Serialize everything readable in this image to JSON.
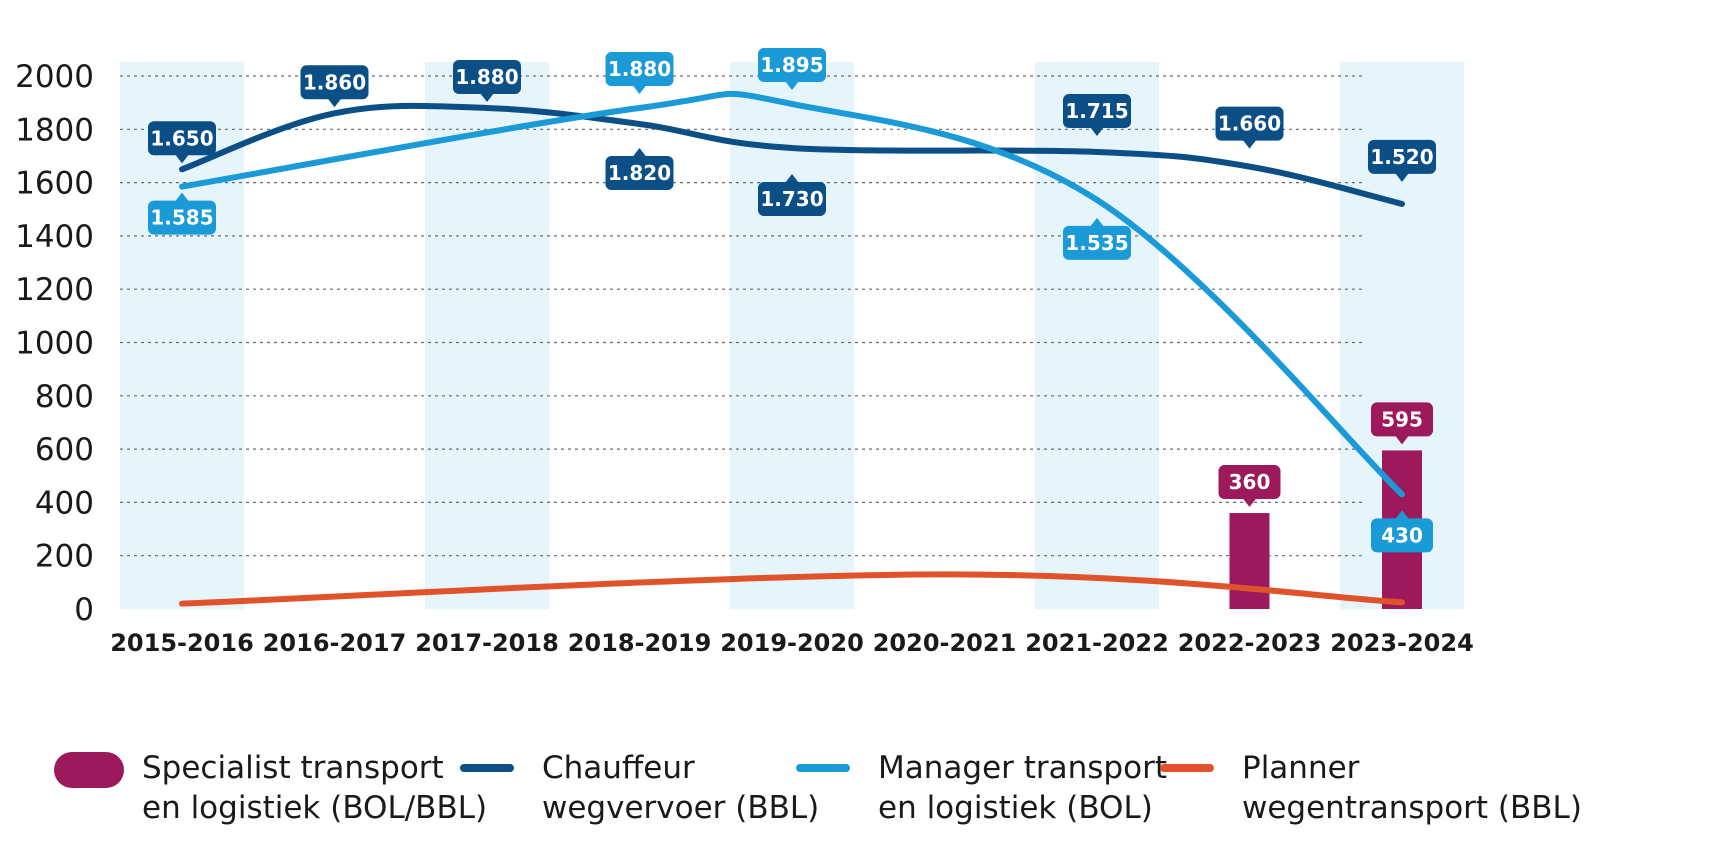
{
  "chart_data": {
    "type": "bar+line",
    "categories": [
      "2015-2016",
      "2016-2017",
      "2017-2018",
      "2018-2019",
      "2019-2020",
      "2020-2021",
      "2021-2022",
      "2022-2023",
      "2023-2024"
    ],
    "yticks": [
      "0",
      "200",
      "400",
      "600",
      "800",
      "1000",
      "1200",
      "1400",
      "1600",
      "1800",
      "2000"
    ],
    "ylim": [
      0,
      2000
    ],
    "grid": "dotted horizontal",
    "series": [
      {
        "name": "Specialist transport\nen logistiek (BOL/BBL)",
        "kind": "bar",
        "color": "#9c1a5b",
        "values": [
          null,
          null,
          null,
          null,
          null,
          null,
          null,
          360,
          595
        ],
        "labels": [
          "",
          "",
          "",
          "",
          "",
          "",
          "",
          "360",
          "595"
        ]
      },
      {
        "name": "Chauffeur\nwegvervoer (BBL)",
        "kind": "line",
        "color": "#0b4f86",
        "values": [
          1650,
          1860,
          1880,
          1820,
          1730,
          null,
          1715,
          1660,
          1520
        ],
        "labels": [
          "1.650",
          "1.860",
          "1.880",
          "1.820",
          "1.730",
          "",
          "1.715",
          "1.660",
          "1.520"
        ]
      },
      {
        "name": "Manager transport\nen logistiek (BOL)",
        "kind": "line",
        "color": "#1a9ad6",
        "values": [
          1585,
          null,
          null,
          1880,
          1895,
          null,
          1535,
          null,
          430
        ],
        "labels": [
          "1.585",
          "",
          "",
          "1.880",
          "1.895",
          "",
          "1.535",
          "",
          "430"
        ]
      },
      {
        "name": "Planner\nwegentransport (BBL)",
        "kind": "line",
        "color": "#e0532a",
        "values": [
          20,
          null,
          null,
          null,
          null,
          130,
          null,
          null,
          25
        ],
        "labels": [
          "",
          "",
          "",
          "",
          "",
          "",
          "",
          "",
          ""
        ]
      }
    ],
    "legend_position": "bottom",
    "band_color": "#e6f4fc"
  }
}
